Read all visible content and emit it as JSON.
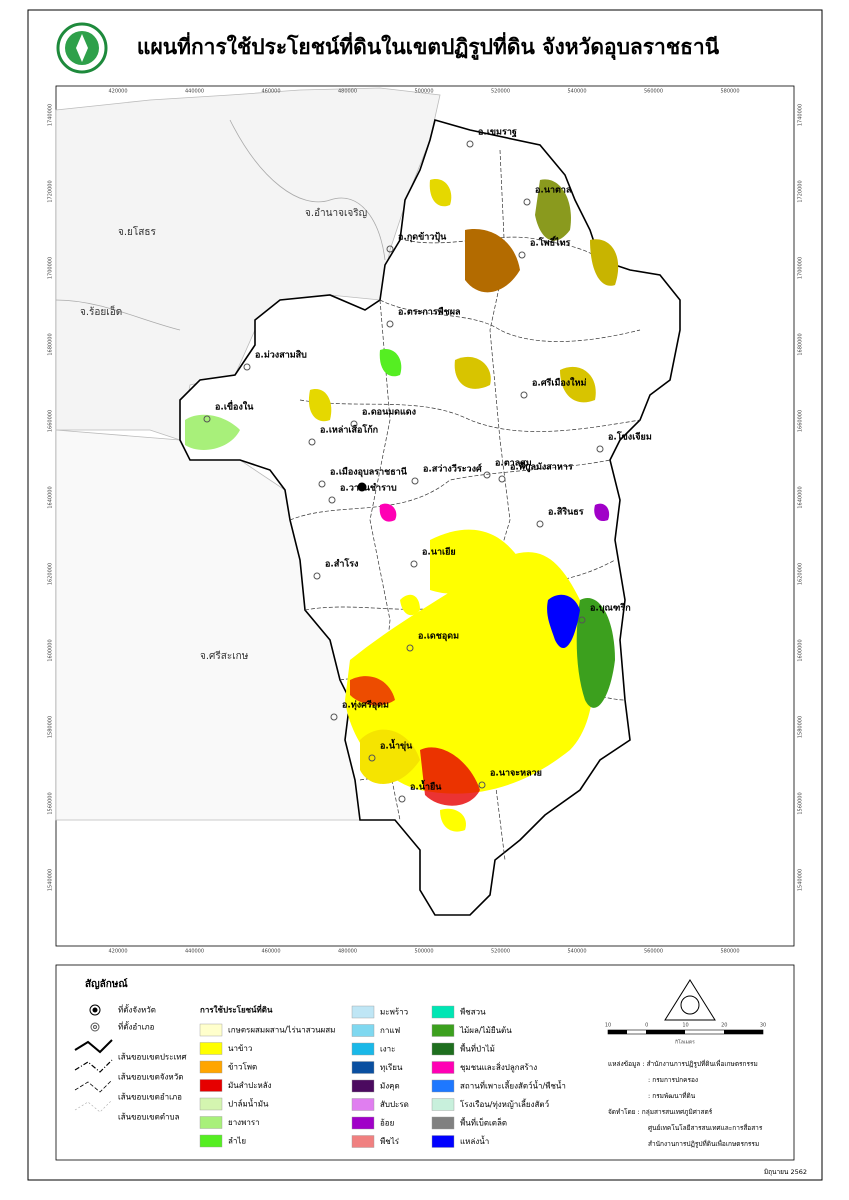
{
  "header": {
    "title": "แผนที่การใช้ประโยชน์ที่ดินในเขตปฏิรูปที่ดิน จังหวัดอุบลราชธานี"
  },
  "map": {
    "grid_x": [
      "420000",
      "440000",
      "460000",
      "480000",
      "500000",
      "520000",
      "540000",
      "560000",
      "580000"
    ],
    "grid_y": [
      "1740000",
      "1720000",
      "1700000",
      "1680000",
      "1660000",
      "1640000",
      "1620000",
      "1600000",
      "1580000",
      "1560000",
      "1540000"
    ],
    "provinces": [
      "จ.อำนาจเจริญ",
      "จ.ยโสธร",
      "จ.ร้อยเอ็ด",
      "จ.ศรีสะเกษ"
    ],
    "districts": [
      "อ.เขมราฐ",
      "อ.นาตาล",
      "อ.กุดข้าวปุ้น",
      "อ.โพธิ์ไทร",
      "อ.ตระการพืชผล",
      "อ.ม่วงสามสิบ",
      "อ.ศรีเมืองใหม่",
      "อ.เขื่องใน",
      "อ.เหล่าเสือโก้ก",
      "อ.ดอนมดแดง",
      "อ.โขงเจียม",
      "อ.เมืองอุบลราชธานี",
      "อ.ตาลสุม",
      "อ.สว่างวีระวงศ์",
      "อ.พิบูลมังสาหาร",
      "อ.วารินชำราบ",
      "อ.สิรินธร",
      "อ.สำโรง",
      "อ.นาเยีย",
      "อ.บุณฑริก",
      "อ.เดชอุดม",
      "อ.ทุ่งศรีอุดม",
      "อ.น้ำขุ่น",
      "อ.นาจะหลวย",
      "อ.น้ำยืน"
    ]
  },
  "legend": {
    "title": "สัญลักษณ์",
    "symbols": [
      "ที่ตั้งจังหวัด",
      "ที่ตั้งอำเภอ",
      "เส้นขอบเขตประเทศ",
      "เส้นขอบเขตจังหวัด",
      "เส้นขอบเขตอำเภอ",
      "เส้นขอบเขตตำบล"
    ],
    "landuse_title": "การใช้ประโยชน์ที่ดิน",
    "landuse": [
      {
        "label": "เกษตรผสมผสาน/ไร่นาสวนผสม",
        "color": "#ffffcc"
      },
      {
        "label": "นาข้าว",
        "color": "#ffff00"
      },
      {
        "label": "ข้าวโพด",
        "color": "#ffa500"
      },
      {
        "label": "มันสำปะหลัง",
        "color": "#e60000"
      },
      {
        "label": "ปาล์มน้ำมัน",
        "color": "#d4f5b0"
      },
      {
        "label": "ยางพารา",
        "color": "#a8f07a"
      },
      {
        "label": "ลำไย",
        "color": "#55ee22"
      },
      {
        "label": "มะพร้าว",
        "color": "#bfe6f5"
      },
      {
        "label": "กาแฟ",
        "color": "#7fd8f0"
      },
      {
        "label": "เงาะ",
        "color": "#1ab8e8"
      },
      {
        "label": "ทุเรียน",
        "color": "#0a4fa0"
      },
      {
        "label": "มังคุด",
        "color": "#4b0a5f"
      },
      {
        "label": "สับปะรด",
        "color": "#e07ef0"
      },
      {
        "label": "อ้อย",
        "color": "#a000c8"
      },
      {
        "label": "พืชไร่",
        "color": "#f08080"
      },
      {
        "label": "พืชสวน",
        "color": "#00e6b4"
      },
      {
        "label": "ไม้ผล/ไม้ยืนต้น",
        "color": "#3ca01e"
      },
      {
        "label": "พื้นที่ป่าไม้",
        "color": "#1e6e1e"
      },
      {
        "label": "ชุมชนและสิ่งปลูกสร้าง",
        "color": "#ff00b4"
      },
      {
        "label": "สถานที่เพาะเลี้ยงสัตว์น้ำ/พืชน้ำ",
        "color": "#1e78ff"
      },
      {
        "label": "โรงเรือน/ทุ่งหญ้าเลี้ยงสัตว์",
        "color": "#c8f0dc"
      },
      {
        "label": "พื้นที่เบ็ดเตล็ด",
        "color": "#808080"
      },
      {
        "label": "แหล่งน้ำ",
        "color": "#0000ff"
      }
    ]
  },
  "scale": {
    "ticks": [
      "10",
      "0",
      "10",
      "20",
      "30"
    ],
    "unit": "กิโลเมตร"
  },
  "notes": [
    "แหล่งข้อมูล : สำนักงานการปฏิรูปที่ดินเพื่อเกษตรกรรม",
    ": กรมการปกครอง",
    ": กรมพัฒนาที่ดิน",
    "จัดทำโดย : กลุ่มสารสนเทศภูมิศาสตร์",
    "ศูนย์เทคโนโลยีสารสนเทศและการสื่อสาร",
    "สำนักงานการปฏิรูปที่ดินเพื่อเกษตรกรรม"
  ],
  "date": "มิถุนายน 2562"
}
